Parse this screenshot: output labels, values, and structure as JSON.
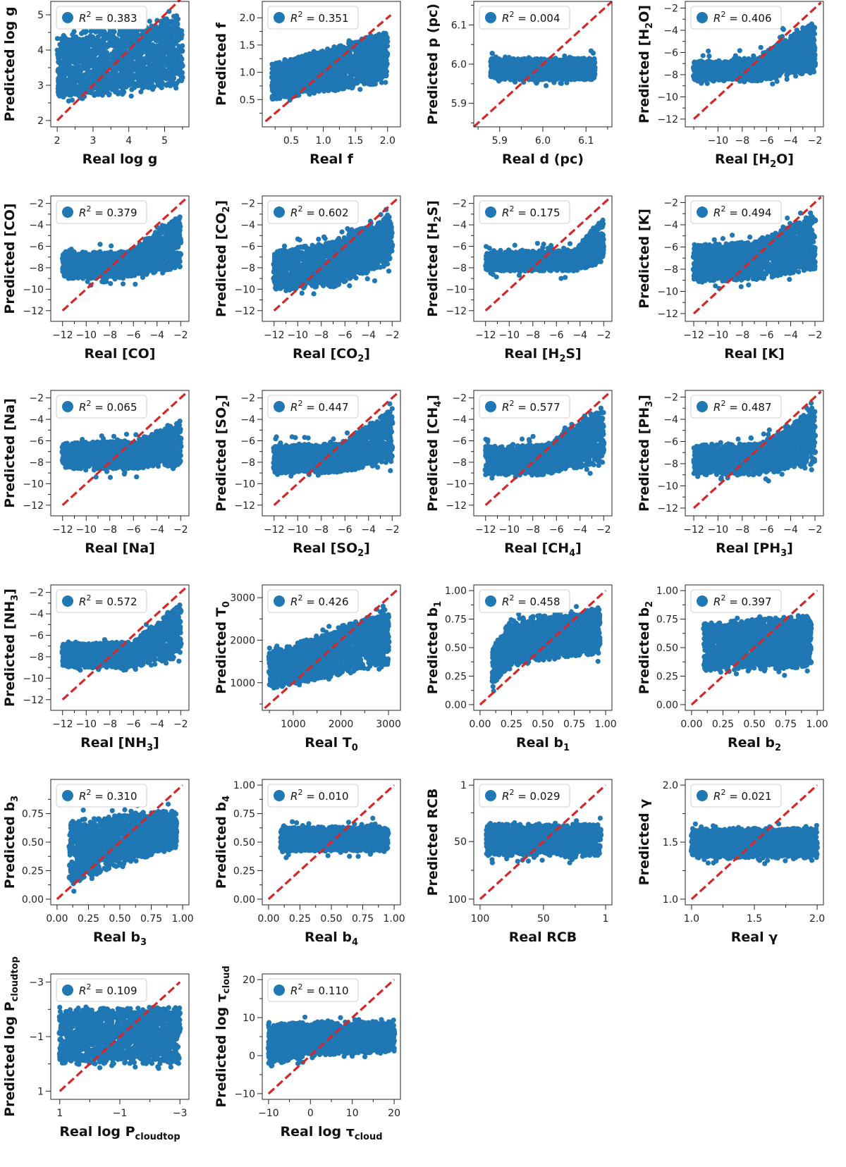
{
  "colors": {
    "points": "#1f77b4",
    "diagonal": "#d62728"
  },
  "chart_data": [
    {
      "type": "scatter",
      "id": "logg",
      "xlabel": "Real log g",
      "ylabel": "Predicted log g",
      "r2": "0.383",
      "xlim": [
        1.82,
        5.68
      ],
      "ylim": [
        1.82,
        5.38
      ],
      "xticks": [
        2,
        3,
        4,
        5
      ],
      "yticks": [
        2,
        3,
        4,
        5
      ],
      "xminor": [
        2.5,
        3.5,
        4.5,
        5.5
      ],
      "yminor": [
        2.5,
        3.5,
        4.5
      ],
      "diag": [
        2,
        5.5
      ],
      "cloud": {
        "x": [
          2,
          5.5
        ],
        "ylo": [
          2.5,
          3.0
        ],
        "yhi": [
          4.4,
          5.0
        ],
        "sp": 0.12
      }
    },
    {
      "type": "scatter",
      "id": "f",
      "xlabel": "Real f",
      "ylabel": "Predicted f",
      "r2": "0.351",
      "xlim": [
        0.05,
        2.2
      ],
      "ylim": [
        0.0,
        2.3
      ],
      "xticks": [
        0.5,
        1.0,
        1.5,
        2.0
      ],
      "yticks": [
        0.5,
        1.0,
        1.5,
        2.0
      ],
      "xminor": [
        0.25,
        0.75,
        1.25,
        1.75
      ],
      "yminor": [
        0.25,
        0.75,
        1.25,
        1.75
      ],
      "diag": [
        0.1,
        2.05
      ],
      "cloud": {
        "x": [
          0.2,
          2.0
        ],
        "ylo": [
          0.5,
          0.8
        ],
        "yhi": [
          1.15,
          1.75
        ],
        "sp": 0.03
      }
    },
    {
      "type": "scatter",
      "id": "d",
      "xlabel": "Real d (pc)",
      "ylabel": "Predicted p (pc)",
      "r2": "0.004",
      "xlim": [
        5.84,
        6.16
      ],
      "ylim": [
        5.84,
        6.16
      ],
      "xticks": [
        5.9,
        6.0,
        6.1
      ],
      "yticks": [
        5.9,
        6.0,
        6.1
      ],
      "xminor": [
        5.85,
        5.95,
        6.05,
        6.15
      ],
      "yminor": [
        5.85,
        5.95,
        6.05,
        6.15
      ],
      "diag": [
        5.84,
        6.16
      ],
      "cloud": {
        "x": [
          5.88,
          6.12
        ],
        "ylo": [
          5.96,
          5.96
        ],
        "yhi": [
          6.015,
          6.015
        ],
        "sp": 0.008
      }
    },
    {
      "type": "scatter",
      "id": "h2o",
      "xlabel": "Real [H2O]",
      "ylabel": "Predicted [H2O]",
      "r2": "0.406",
      "xlim": [
        -12.7,
        -1.3
      ],
      "ylim": [
        -12.7,
        -1.4
      ],
      "xticks": [
        -10,
        -8,
        -6,
        -4,
        -2
      ],
      "yticks": [
        -12,
        -10,
        -8,
        -6,
        -4,
        -2
      ],
      "xminor": [
        -12,
        -11,
        -9,
        -7,
        -5,
        -3
      ],
      "yminor": [
        -11,
        -9,
        -7,
        -5,
        -3
      ],
      "diag": [
        -12,
        -1.5
      ],
      "cloud": {
        "x": [
          -12,
          -7,
          -2
        ],
        "ylo": [
          -8.6,
          -8.6,
          -7.8
        ],
        "yhi": [
          -6.8,
          -6.6,
          -2.8
        ],
        "sp": 0.35
      }
    },
    {
      "type": "scatter",
      "id": "co",
      "xlabel": "Real [CO]",
      "ylabel": "Predicted [CO]",
      "r2": "0.379",
      "xlim": [
        -13.0,
        -1.3
      ],
      "ylim": [
        -13.0,
        -1.3
      ],
      "xticks": [
        -12,
        -10,
        -8,
        -6,
        -4,
        -2
      ],
      "yticks": [
        -12,
        -10,
        -8,
        -6,
        -4,
        -2
      ],
      "xminor": [
        -11,
        -9,
        -7,
        -5,
        -3
      ],
      "yminor": [
        -11,
        -9,
        -7,
        -5,
        -3
      ],
      "diag": [
        -12,
        -1.5
      ],
      "cloud": {
        "x": [
          -12,
          -6.5,
          -2
        ],
        "ylo": [
          -9.0,
          -9.0,
          -8.0
        ],
        "yhi": [
          -6.5,
          -6.5,
          -3.0
        ],
        "sp": 0.3
      }
    },
    {
      "type": "scatter",
      "id": "co2",
      "xlabel": "Real [CO2]",
      "ylabel": "Predicted [CO2]",
      "r2": "0.602",
      "xlim": [
        -13.0,
        -1.3
      ],
      "ylim": [
        -13.0,
        -1.3
      ],
      "xticks": [
        -12,
        -10,
        -8,
        -6,
        -4,
        -2
      ],
      "yticks": [
        -12,
        -10,
        -8,
        -6,
        -4,
        -2
      ],
      "xminor": [
        -11,
        -9,
        -7,
        -5,
        -3
      ],
      "yminor": [
        -11,
        -9,
        -7,
        -5,
        -3
      ],
      "diag": [
        -12,
        -1.5
      ],
      "cloud": {
        "x": [
          -12,
          -7,
          -2
        ],
        "ylo": [
          -10.0,
          -9.8,
          -7.5
        ],
        "yhi": [
          -6.5,
          -5.5,
          -3.0
        ],
        "sp": 0.4
      }
    },
    {
      "type": "scatter",
      "id": "h2s",
      "xlabel": "Real [H2S]",
      "ylabel": "Predicted [H2S]",
      "r2": "0.175",
      "xlim": [
        -13.0,
        -1.3
      ],
      "ylim": [
        -13.0,
        -1.3
      ],
      "xticks": [
        -12,
        -10,
        -8,
        -6,
        -4,
        -2
      ],
      "yticks": [
        -12,
        -10,
        -8,
        -6,
        -4,
        -2
      ],
      "xminor": [
        -11,
        -9,
        -7,
        -5,
        -3
      ],
      "yminor": [
        -11,
        -9,
        -7,
        -5,
        -3
      ],
      "diag": [
        -12,
        -1.5
      ],
      "cloud": {
        "x": [
          -12,
          -4.5,
          -2
        ],
        "ylo": [
          -8.3,
          -8.3,
          -7.5
        ],
        "yhi": [
          -6.6,
          -6.3,
          -3.2
        ],
        "sp": 0.3
      }
    },
    {
      "type": "scatter",
      "id": "k",
      "xlabel": "Real [K]",
      "ylabel": "Predicted [K]",
      "r2": "0.494",
      "xlim": [
        -12.7,
        -1.3
      ],
      "ylim": [
        -12.7,
        -1.4
      ],
      "xticks": [
        -12,
        -10,
        -8,
        -6,
        -4,
        -2
      ],
      "yticks": [
        -12,
        -10,
        -8,
        -6,
        -4,
        -2
      ],
      "xminor": [
        -11,
        -9,
        -7,
        -5,
        -3
      ],
      "yminor": [
        -11,
        -9,
        -7,
        -5,
        -3
      ],
      "diag": [
        -12,
        -1.5
      ],
      "cloud": {
        "x": [
          -12,
          -7,
          -2
        ],
        "ylo": [
          -9.2,
          -9.0,
          -8.0
        ],
        "yhi": [
          -5.8,
          -5.5,
          -3.0
        ],
        "sp": 0.35
      }
    },
    {
      "type": "scatter",
      "id": "na",
      "xlabel": "Real [Na]",
      "ylabel": "Predicted [Na]",
      "r2": "0.065",
      "xlim": [
        -13.0,
        -1.3
      ],
      "ylim": [
        -13.0,
        -1.3
      ],
      "xticks": [
        -12,
        -10,
        -8,
        -6,
        -4,
        -2
      ],
      "yticks": [
        -12,
        -10,
        -8,
        -6,
        -4,
        -2
      ],
      "xminor": [
        -11,
        -9,
        -7,
        -5,
        -3
      ],
      "yminor": [
        -11,
        -9,
        -7,
        -5,
        -3
      ],
      "diag": [
        -12,
        -1.5
      ],
      "cloud": {
        "x": [
          -12,
          -6,
          -2
        ],
        "ylo": [
          -8.6,
          -8.6,
          -8.3
        ],
        "yhi": [
          -6.2,
          -6.0,
          -4.2
        ],
        "sp": 0.3
      }
    },
    {
      "type": "scatter",
      "id": "so2",
      "xlabel": "Real [SO2]",
      "ylabel": "Predicted [SO2]",
      "r2": "0.447",
      "xlim": [
        -13.0,
        -1.3
      ],
      "ylim": [
        -13.0,
        -1.3
      ],
      "xticks": [
        -12,
        -10,
        -8,
        -6,
        -4,
        -2
      ],
      "yticks": [
        -12,
        -10,
        -8,
        -6,
        -4,
        -2
      ],
      "xminor": [
        -11,
        -9,
        -7,
        -5,
        -3
      ],
      "yminor": [
        -11,
        -9,
        -7,
        -5,
        -3
      ],
      "diag": [
        -12,
        -1.5
      ],
      "cloud": {
        "x": [
          -12,
          -6.5,
          -2
        ],
        "ylo": [
          -9.0,
          -9.0,
          -8.0
        ],
        "yhi": [
          -6.3,
          -6.3,
          -3.0
        ],
        "sp": 0.3
      }
    },
    {
      "type": "scatter",
      "id": "ch4",
      "xlabel": "Real [CH4]",
      "ylabel": "Predicted [CH4]",
      "r2": "0.577",
      "xlim": [
        -13.0,
        -1.3
      ],
      "ylim": [
        -13.0,
        -1.3
      ],
      "xticks": [
        -12,
        -10,
        -8,
        -6,
        -4,
        -2
      ],
      "yticks": [
        -12,
        -10,
        -8,
        -6,
        -4,
        -2
      ],
      "xminor": [
        -11,
        -9,
        -7,
        -5,
        -3
      ],
      "yminor": [
        -11,
        -9,
        -7,
        -5,
        -3
      ],
      "diag": [
        -12,
        -1.5
      ],
      "cloud": {
        "x": [
          -12,
          -7,
          -2
        ],
        "ylo": [
          -9.2,
          -9.2,
          -8.0
        ],
        "yhi": [
          -6.5,
          -6.4,
          -2.7
        ],
        "sp": 0.35
      }
    },
    {
      "type": "scatter",
      "id": "ph3",
      "xlabel": "Real [PH3]",
      "ylabel": "Predicted [PH3]",
      "r2": "0.487",
      "xlim": [
        -12.7,
        -1.3
      ],
      "ylim": [
        -12.7,
        -1.4
      ],
      "xticks": [
        -12,
        -10,
        -8,
        -6,
        -4,
        -2
      ],
      "yticks": [
        -12,
        -10,
        -8,
        -6,
        -4,
        -2
      ],
      "xminor": [
        -11,
        -9,
        -7,
        -5,
        -3
      ],
      "yminor": [
        -11,
        -9,
        -7,
        -5,
        -3
      ],
      "diag": [
        -12,
        -1.5
      ],
      "cloud": {
        "x": [
          -12,
          -6.5,
          -2
        ],
        "ylo": [
          -9.0,
          -9.0,
          -8.0
        ],
        "yhi": [
          -6.3,
          -6.2,
          -2.8
        ],
        "sp": 0.35
      }
    },
    {
      "type": "scatter",
      "id": "nh3",
      "xlabel": "Real [NH3]",
      "ylabel": "Predicted [NH3]",
      "r2": "0.572",
      "xlim": [
        -13.0,
        -1.3
      ],
      "ylim": [
        -13.0,
        -1.3
      ],
      "xticks": [
        -12,
        -10,
        -8,
        -6,
        -4,
        -2
      ],
      "yticks": [
        -12,
        -10,
        -8,
        -6,
        -4,
        -2
      ],
      "xminor": [
        -11,
        -9,
        -7,
        -5,
        -3
      ],
      "yminor": [
        -11,
        -9,
        -7,
        -5,
        -3
      ],
      "diag": [
        -12,
        -1.5
      ],
      "cloud": {
        "x": [
          -12,
          -6,
          -2
        ],
        "ylo": [
          -9.0,
          -9.0,
          -8.0
        ],
        "yhi": [
          -6.8,
          -6.6,
          -2.8
        ],
        "sp": 0.3
      }
    },
    {
      "type": "scatter",
      "id": "t0",
      "xlabel": "Real T0",
      "ylabel": "Predicted T0",
      "r2": "0.426",
      "xlim": [
        350,
        3250
      ],
      "ylim": [
        350,
        3300
      ],
      "xticks": [
        1000,
        2000,
        3000
      ],
      "yticks": [
        1000,
        2000,
        3000
      ],
      "xminor": [
        500,
        1500,
        2500
      ],
      "yminor": [
        500,
        1500,
        2500
      ],
      "diag": [
        400,
        3200
      ],
      "cloud": {
        "x": [
          500,
          3000
        ],
        "ylo": [
          850,
          1400
        ],
        "yhi": [
          1700,
          2750
        ],
        "sp": 80
      }
    },
    {
      "type": "scatter",
      "id": "b1",
      "xlabel": "Real b1",
      "ylabel": "Predicted b1",
      "r2": "0.458",
      "xlim": [
        -0.05,
        1.05
      ],
      "ylim": [
        -0.05,
        1.05
      ],
      "xticks": [
        0.0,
        0.25,
        0.5,
        0.75,
        1.0
      ],
      "yticks": [
        0.0,
        0.25,
        0.5,
        0.75,
        1.0
      ],
      "xminor": [
        0.125,
        0.375,
        0.625,
        0.875
      ],
      "yminor": [
        0.125,
        0.375,
        0.625,
        0.875
      ],
      "diag": [
        0.0,
        1.0
      ],
      "cloud": {
        "x": [
          0.1,
          0.25,
          0.95
        ],
        "ylo": [
          0.15,
          0.35,
          0.45
        ],
        "yhi": [
          0.5,
          0.75,
          0.85
        ],
        "sp": 0.03
      }
    },
    {
      "type": "scatter",
      "id": "b2",
      "xlabel": "Real b2",
      "ylabel": "Predicted b2",
      "r2": "0.397",
      "xlim": [
        -0.05,
        1.05
      ],
      "ylim": [
        -0.05,
        1.05
      ],
      "xticks": [
        0.0,
        0.25,
        0.5,
        0.75,
        1.0
      ],
      "yticks": [
        0.0,
        0.25,
        0.5,
        0.75,
        1.0
      ],
      "xminor": [
        0.125,
        0.375,
        0.625,
        0.875
      ],
      "yminor": [
        0.125,
        0.375,
        0.625,
        0.875
      ],
      "diag": [
        0.0,
        1.0
      ],
      "cloud": {
        "x": [
          0.1,
          0.95
        ],
        "ylo": [
          0.3,
          0.32
        ],
        "yhi": [
          0.72,
          0.78
        ],
        "sp": 0.03
      }
    },
    {
      "type": "scatter",
      "id": "b3",
      "xlabel": "Real b3",
      "ylabel": "Predicted b3",
      "r2": "0.310",
      "xlim": [
        -0.05,
        1.05
      ],
      "ylim": [
        -0.05,
        1.05
      ],
      "xticks": [
        0.0,
        0.25,
        0.5,
        0.75,
        1.0
      ],
      "yticks": [
        0.0,
        0.25,
        0.5,
        0.75
      ],
      "xminor": [
        0.125,
        0.375,
        0.625,
        0.875
      ],
      "yminor": [
        0.125,
        0.375,
        0.625,
        0.875
      ],
      "diag": [
        0.0,
        1.0
      ],
      "cloud": {
        "x": [
          0.1,
          0.5,
          0.95
        ],
        "ylo": [
          0.12,
          0.3,
          0.45
        ],
        "yhi": [
          0.68,
          0.75,
          0.78
        ],
        "sp": 0.03
      }
    },
    {
      "type": "scatter",
      "id": "b4",
      "xlabel": "Real b4",
      "ylabel": "Predicted b4",
      "r2": "0.010",
      "xlim": [
        -0.05,
        1.05
      ],
      "ylim": [
        -0.05,
        1.05
      ],
      "xticks": [
        0.0,
        0.25,
        0.5,
        0.75,
        1.0
      ],
      "yticks": [
        0.0,
        0.25,
        0.5,
        0.75,
        1.0
      ],
      "xminor": [
        0.125,
        0.375,
        0.625,
        0.875
      ],
      "yminor": [
        0.125,
        0.375,
        0.625,
        0.875
      ],
      "diag": [
        0.0,
        1.0
      ],
      "cloud": {
        "x": [
          0.1,
          0.95
        ],
        "ylo": [
          0.42,
          0.42
        ],
        "yhi": [
          0.63,
          0.64
        ],
        "sp": 0.025
      }
    },
    {
      "type": "scatter",
      "id": "rcb",
      "xlabel": "Real RCB",
      "ylabel": "Predicted RCB",
      "r2": "0.029",
      "xlim": [
        105,
        -4
      ],
      "ylim": [
        105,
        -4
      ],
      "xticks": [
        100,
        50,
        1
      ],
      "yticks": [
        100,
        50,
        1
      ],
      "xminor": [
        75,
        25
      ],
      "yminor": [
        75,
        25
      ],
      "diag": [
        100,
        1
      ],
      "cloud": {
        "x": [
          95,
          5
        ],
        "ylo": [
          62,
          62
        ],
        "yhi": [
          35,
          35
        ],
        "sp": 3
      }
    },
    {
      "type": "scatter",
      "id": "gamma",
      "xlabel": "Real γ",
      "ylabel": "Predicted γ",
      "r2": "0.021",
      "xlim": [
        0.95,
        2.05
      ],
      "ylim": [
        0.95,
        2.05
      ],
      "xticks": [
        1.0,
        1.5,
        2.0
      ],
      "yticks": [
        1.0,
        1.5,
        2.0
      ],
      "xminor": [
        1.25,
        1.75
      ],
      "yminor": [
        1.25,
        1.75
      ],
      "diag": [
        1.0,
        2.0
      ],
      "cloud": {
        "x": [
          1.0,
          2.0
        ],
        "ylo": [
          1.36,
          1.36
        ],
        "yhi": [
          1.62,
          1.62
        ],
        "sp": 0.025
      }
    },
    {
      "type": "scatter",
      "id": "pcloud",
      "xlabel": "Real log P",
      "xlabel_sub": "cloudtop",
      "ylabel": "Predicted log P",
      "ylabel_sub": "cloudtop",
      "r2": "0.109",
      "xlim": [
        1.3,
        -3.3
      ],
      "ylim": [
        1.3,
        -3.3
      ],
      "xticks": [
        1,
        -1,
        -3
      ],
      "xticklabels": [
        "1",
        "−1",
        "−3"
      ],
      "yticks": [
        1,
        -1,
        -3
      ],
      "yticklabels": [
        "1",
        "−1",
        "−3"
      ],
      "xminor": [
        0,
        -2
      ],
      "yminor": [
        0,
        -2
      ],
      "diag": [
        1,
        -3
      ],
      "cloud": {
        "x": [
          1,
          -3
        ],
        "ylo": [
          0.0,
          0.0
        ],
        "yhi": [
          -2.0,
          -2.1
        ],
        "sp": 0.1
      }
    },
    {
      "type": "scatter",
      "id": "tau",
      "xlabel": "Real log τ",
      "xlabel_sub": "cloud",
      "ylabel": "Predicted log τ",
      "ylabel_sub": "cloud",
      "r2": "0.110",
      "xlim": [
        -11.5,
        21.5
      ],
      "ylim": [
        -11.5,
        21.5
      ],
      "xticks": [
        -10,
        0,
        10,
        20
      ],
      "yticks": [
        -10,
        0,
        10,
        20
      ],
      "xminor": [
        -5,
        5,
        15
      ],
      "yminor": [
        -5,
        5,
        15
      ],
      "diag": [
        -10,
        20
      ],
      "cloud": {
        "x": [
          -10,
          0,
          20
        ],
        "ylo": [
          -3,
          0,
          1
        ],
        "yhi": [
          8,
          9,
          9
        ],
        "sp": 0.6
      }
    }
  ]
}
